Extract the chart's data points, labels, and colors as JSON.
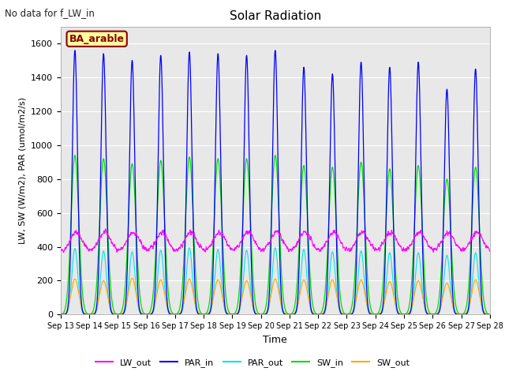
{
  "title": "Solar Radiation",
  "annotation": "No data for f_LW_in",
  "legend_box_label": "BA_arable",
  "xlabel": "Time",
  "ylabel": "LW, SW (W/m2), PAR (umol/m2/s)",
  "ylim": [
    0,
    1700
  ],
  "yticks": [
    0,
    200,
    400,
    600,
    800,
    1000,
    1200,
    1400,
    1600
  ],
  "xtick_labels": [
    "Sep 13",
    "Sep 14",
    "Sep 15",
    "Sep 16",
    "Sep 17",
    "Sep 18",
    "Sep 19",
    "Sep 20",
    "Sep 21",
    "Sep 22",
    "Sep 23",
    "Sep 24",
    "Sep 25",
    "Sep 26",
    "Sep 27",
    "Sep 28"
  ],
  "colors": {
    "LW_out": "#ff00ff",
    "PAR_in": "#0000ff",
    "PAR_out": "#00e5e5",
    "SW_in": "#00dd00",
    "SW_out": "#ffaa00"
  },
  "par_in_peaks": [
    1560,
    1540,
    1500,
    1530,
    1550,
    1540,
    1530,
    1560,
    1460,
    1420,
    1490,
    1460,
    1490,
    1330,
    1450
  ],
  "sw_in_peaks": [
    940,
    920,
    890,
    910,
    930,
    920,
    920,
    940,
    880,
    870,
    900,
    860,
    880,
    800,
    870
  ],
  "sw_out_peaks": [
    210,
    200,
    215,
    205,
    210,
    205,
    200,
    210,
    205,
    205,
    205,
    195,
    200,
    185,
    205
  ],
  "par_out_peaks": [
    390,
    375,
    370,
    380,
    395,
    385,
    380,
    395,
    385,
    370,
    375,
    365,
    365,
    350,
    365
  ],
  "lw_out_base": 370,
  "lw_out_peak_add": 115,
  "background_color": "#e8e8e8",
  "figure_background": "#ffffff",
  "grid_color": "#ffffff",
  "n_days": 15,
  "n_pts": 2000,
  "peak_hour": 12,
  "par_sigma_hrs": 2.2,
  "sw_sigma_hrs": 3.2,
  "par_out_sigma_hrs": 2.5
}
